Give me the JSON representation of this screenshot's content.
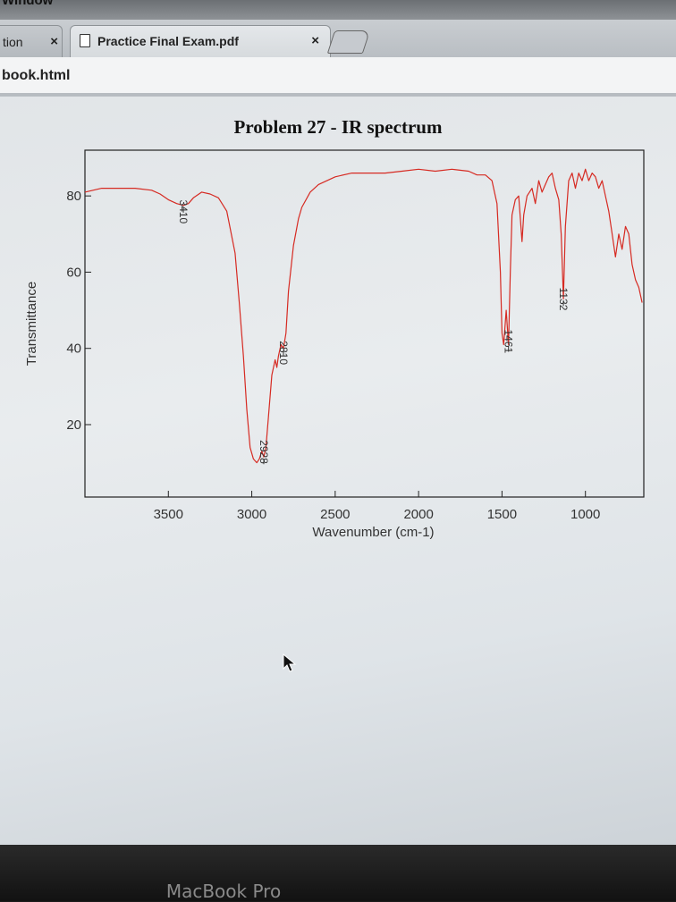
{
  "browser": {
    "menu_fragment": "Window",
    "tabs": [
      {
        "label": "tion",
        "close": "×"
      },
      {
        "label": "Practice Final Exam.pdf",
        "close": "×"
      }
    ],
    "url": "book.html"
  },
  "laptop": {
    "brand": "MacBook Pro"
  },
  "colors": {
    "spectrum": "#d62a22",
    "axis": "#222222"
  },
  "icons": [
    "document-icon",
    "close-icon",
    "new-tab-icon",
    "mouse-cursor-icon"
  ],
  "chart_data": {
    "type": "line",
    "title": "Problem 27 - IR spectrum",
    "xlabel": "Wavenumber (cm-1)",
    "ylabel": "Transmittance",
    "xlim": [
      4000,
      650
    ],
    "ylim": [
      1,
      92
    ],
    "x_reversed": true,
    "x_ticks": [
      3500,
      3000,
      2500,
      2000,
      1500,
      1000
    ],
    "y_ticks": [
      80,
      60,
      40,
      20
    ],
    "grid": false,
    "series": [
      {
        "x": [
          4000,
          3900,
          3800,
          3700,
          3600,
          3550,
          3500,
          3450,
          3410,
          3380,
          3350,
          3300,
          3250,
          3200,
          3150,
          3100,
          3075,
          3050,
          3030,
          3010,
          2990,
          2970,
          2955,
          2940,
          2928,
          2915,
          2900,
          2880,
          2860,
          2850,
          2840,
          2825,
          2810,
          2795,
          2780,
          2750,
          2720,
          2700,
          2650,
          2600,
          2500,
          2400,
          2300,
          2200,
          2100,
          2000,
          1900,
          1800,
          1700,
          1650,
          1600,
          1560,
          1530,
          1510,
          1500,
          1490,
          1475,
          1461,
          1450,
          1440,
          1420,
          1400,
          1380,
          1370,
          1350,
          1320,
          1300,
          1280,
          1260,
          1240,
          1220,
          1200,
          1180,
          1160,
          1145,
          1132,
          1120,
          1100,
          1080,
          1060,
          1040,
          1020,
          1000,
          980,
          960,
          940,
          920,
          900,
          880,
          860,
          840,
          820,
          800,
          780,
          760,
          740,
          720,
          700,
          680,
          660
        ],
        "y": [
          81,
          82,
          82,
          82,
          81.5,
          80.5,
          79,
          78,
          77.5,
          78,
          79.5,
          81,
          80.5,
          79.5,
          76,
          65,
          52,
          38,
          24,
          14,
          11,
          10,
          11,
          13,
          11.5,
          14,
          22,
          33,
          37,
          35,
          38,
          41,
          40,
          44,
          55,
          67,
          74,
          77,
          81,
          83,
          85,
          86,
          86,
          86,
          86.5,
          87,
          86.5,
          87,
          86.5,
          85.5,
          85.5,
          84,
          78,
          60,
          44,
          41,
          50,
          41,
          60,
          75,
          79,
          80,
          68,
          75,
          80,
          82,
          78,
          84,
          81,
          83,
          85,
          86,
          82,
          79,
          70,
          53,
          72,
          84,
          86,
          82,
          86,
          84,
          87,
          84,
          86,
          85,
          82,
          84,
          80,
          76,
          70,
          64,
          70,
          66,
          72,
          70,
          62,
          58,
          56,
          52
        ]
      }
    ],
    "annotations": [
      "3410",
      "2928",
      "2810",
      "1461",
      "1132"
    ],
    "annotation_points": [
      {
        "x": 3410,
        "y": 77.5,
        "label_y": 71
      },
      {
        "x": 2928,
        "y": 11.5,
        "label_y": 8
      },
      {
        "x": 2810,
        "y": 40,
        "label_y": 34
      },
      {
        "x": 1461,
        "y": 41,
        "label_y": 37
      },
      {
        "x": 1132,
        "y": 53,
        "label_y": 48
      }
    ]
  }
}
